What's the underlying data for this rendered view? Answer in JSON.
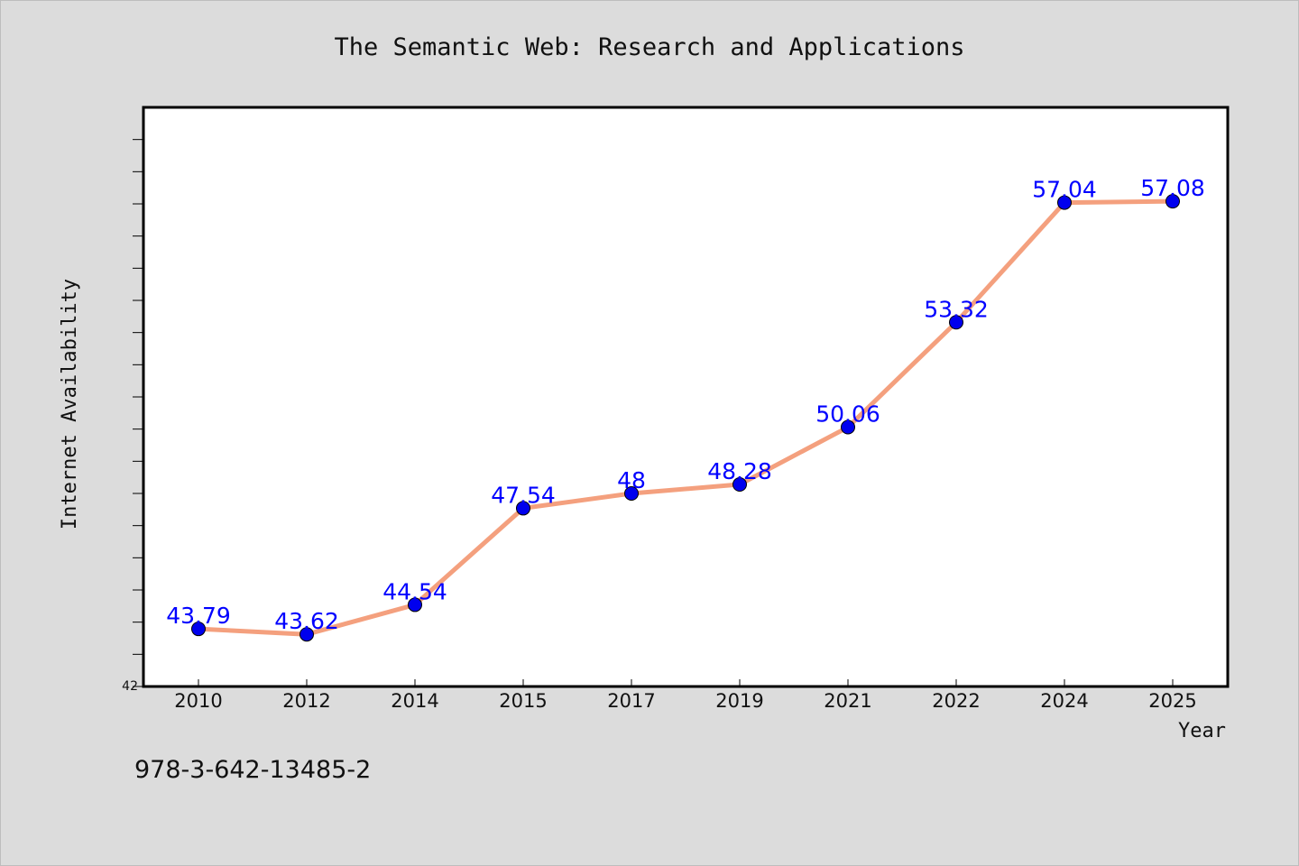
{
  "chart_data": {
    "type": "line",
    "title": "The Semantic Web: Research and Applications",
    "xlabel": "Year",
    "ylabel": "Internet Availability",
    "categories": [
      "2010",
      "2012",
      "2014",
      "2015",
      "2017",
      "2019",
      "2021",
      "2022",
      "2024",
      "2025"
    ],
    "series": [
      {
        "values": [
          43.79,
          43.62,
          44.54,
          47.54,
          48,
          48.28,
          50.06,
          53.32,
          57.04,
          57.08
        ],
        "labels": [
          "43.79",
          "43.62",
          "44.54",
          "47.54",
          "48",
          "48.28",
          "50.06",
          "53.32",
          "57.04",
          "57.08"
        ],
        "line_color": "#f4a07e",
        "marker_color": "#0000ee"
      }
    ],
    "ylim": [
      42,
      60
    ],
    "ytick_label": "42",
    "grid": false,
    "legend": false
  },
  "footnote": "978-3-642-13485-2",
  "colors": {
    "background": "#dcdcdc",
    "plot_background": "#ffffff",
    "data_label": "#0000ff"
  }
}
